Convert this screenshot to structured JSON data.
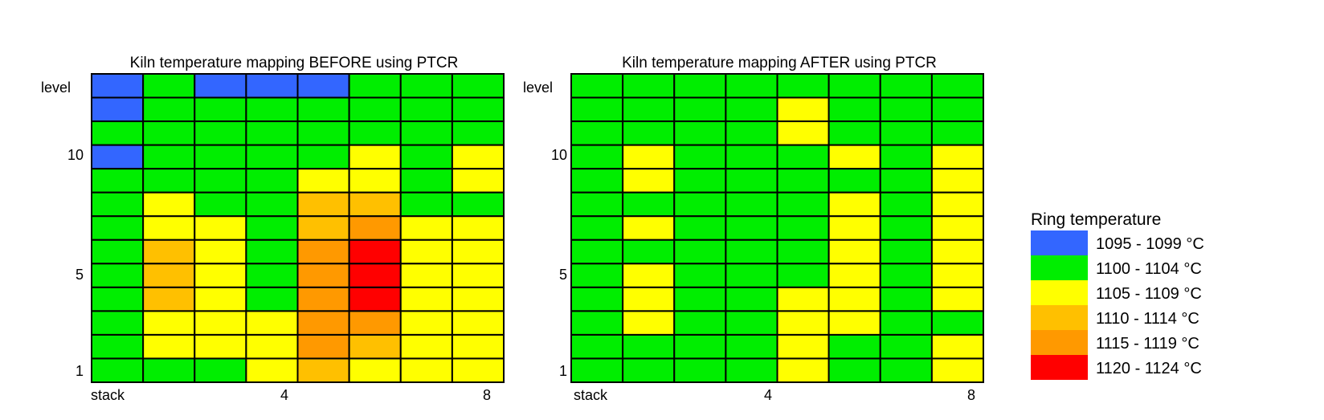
{
  "palette": {
    "b": "#3366FF",
    "g": "#00EE00",
    "y": "#FFFF00",
    "o": "#FFC000",
    "d": "#FF9900",
    "r": "#FF0000"
  },
  "chart_data": [
    {
      "type": "heatmap",
      "title": "Kiln temperature mapping BEFORE using PTCR",
      "ylabel": "level",
      "xlabel": "stack",
      "x_ticks": [
        "4",
        "8"
      ],
      "y_ticks": [
        "10",
        "5",
        "1"
      ],
      "columns": 8,
      "levels": 13,
      "rows_top_to_bottom": [
        [
          "b",
          "g",
          "b",
          "b",
          "b",
          "g",
          "g",
          "g"
        ],
        [
          "b",
          "g",
          "g",
          "g",
          "g",
          "g",
          "g",
          "g"
        ],
        [
          "g",
          "g",
          "g",
          "g",
          "g",
          "g",
          "g",
          "g"
        ],
        [
          "b",
          "g",
          "g",
          "g",
          "g",
          "y",
          "g",
          "y"
        ],
        [
          "g",
          "g",
          "g",
          "g",
          "y",
          "y",
          "g",
          "y"
        ],
        [
          "g",
          "y",
          "g",
          "g",
          "o",
          "o",
          "g",
          "g"
        ],
        [
          "g",
          "y",
          "y",
          "g",
          "o",
          "d",
          "y",
          "y"
        ],
        [
          "g",
          "o",
          "y",
          "g",
          "d",
          "r",
          "y",
          "y"
        ],
        [
          "g",
          "o",
          "y",
          "g",
          "d",
          "r",
          "y",
          "y"
        ],
        [
          "g",
          "o",
          "y",
          "g",
          "d",
          "r",
          "y",
          "y"
        ],
        [
          "g",
          "y",
          "y",
          "y",
          "d",
          "d",
          "y",
          "y"
        ],
        [
          "g",
          "y",
          "y",
          "y",
          "d",
          "o",
          "y",
          "y"
        ],
        [
          "g",
          "g",
          "g",
          "y",
          "o",
          "y",
          "y",
          "y"
        ]
      ]
    },
    {
      "type": "heatmap",
      "title": "Kiln temperature mapping AFTER using PTCR",
      "ylabel": "level",
      "xlabel": "stack",
      "x_ticks": [
        "4",
        "8"
      ],
      "y_ticks": [
        "10",
        "5",
        "1"
      ],
      "columns": 8,
      "levels": 13,
      "rows_top_to_bottom": [
        [
          "g",
          "g",
          "g",
          "g",
          "g",
          "g",
          "g",
          "g"
        ],
        [
          "g",
          "g",
          "g",
          "g",
          "y",
          "g",
          "g",
          "g"
        ],
        [
          "g",
          "g",
          "g",
          "g",
          "y",
          "g",
          "g",
          "g"
        ],
        [
          "g",
          "y",
          "g",
          "g",
          "g",
          "y",
          "g",
          "y"
        ],
        [
          "g",
          "y",
          "g",
          "g",
          "g",
          "g",
          "g",
          "y"
        ],
        [
          "g",
          "g",
          "g",
          "g",
          "g",
          "y",
          "g",
          "y"
        ],
        [
          "g",
          "y",
          "g",
          "g",
          "g",
          "y",
          "g",
          "y"
        ],
        [
          "g",
          "g",
          "g",
          "g",
          "g",
          "y",
          "g",
          "y"
        ],
        [
          "g",
          "y",
          "g",
          "g",
          "g",
          "y",
          "g",
          "y"
        ],
        [
          "g",
          "y",
          "g",
          "g",
          "y",
          "y",
          "g",
          "y"
        ],
        [
          "g",
          "y",
          "g",
          "g",
          "y",
          "y",
          "g",
          "g"
        ],
        [
          "g",
          "g",
          "g",
          "g",
          "y",
          "g",
          "g",
          "y"
        ],
        [
          "g",
          "g",
          "g",
          "g",
          "y",
          "g",
          "g",
          "y"
        ]
      ]
    }
  ],
  "legend": {
    "title": "Ring temperature",
    "items": [
      {
        "key": "b",
        "label": "1095 - 1099 °C"
      },
      {
        "key": "g",
        "label": "1100 - 1104 °C"
      },
      {
        "key": "y",
        "label": "1105 - 1109 °C"
      },
      {
        "key": "o",
        "label": "1110 - 1114 °C"
      },
      {
        "key": "d",
        "label": "1115 - 1119 °C"
      },
      {
        "key": "r",
        "label": "1120 - 1124 °C"
      }
    ]
  }
}
